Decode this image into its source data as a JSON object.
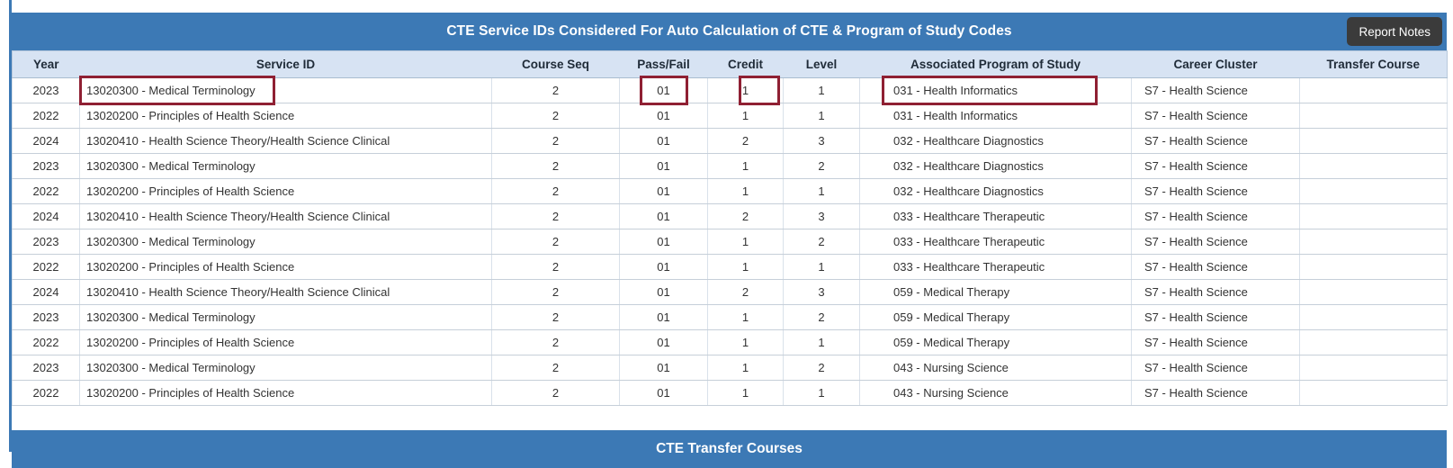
{
  "colors": {
    "bar_blue": "#3c79b5",
    "header_row_bg": "#d7e3f3",
    "highlight_red": "#8f2033",
    "button_dark": "#3b3b3b"
  },
  "header_bar": {
    "title": "CTE Service IDs Considered For Auto Calculation of CTE & Program of Study Codes",
    "report_notes_label": "Report Notes"
  },
  "table": {
    "columns": [
      {
        "key": "year",
        "label": "Year"
      },
      {
        "key": "service_id",
        "label": "Service ID"
      },
      {
        "key": "course_seq",
        "label": "Course Seq"
      },
      {
        "key": "pass_fail",
        "label": "Pass/Fail"
      },
      {
        "key": "credit",
        "label": "Credit"
      },
      {
        "key": "level",
        "label": "Level"
      },
      {
        "key": "program_of_study",
        "label": "Associated Program of Study"
      },
      {
        "key": "career_cluster",
        "label": "Career Cluster"
      },
      {
        "key": "transfer_course",
        "label": "Transfer Course"
      }
    ],
    "rows": [
      {
        "year": "2023",
        "service_id": "13020300 - Medical Terminology",
        "course_seq": "2",
        "pass_fail": "01",
        "credit": "1",
        "level": "1",
        "program_of_study": "031 - Health Informatics",
        "career_cluster": "S7 - Health Science",
        "transfer_course": "",
        "highlights": [
          "service_id",
          "pass_fail",
          "credit",
          "program_of_study"
        ]
      },
      {
        "year": "2022",
        "service_id": "13020200 - Principles of Health Science",
        "course_seq": "2",
        "pass_fail": "01",
        "credit": "1",
        "level": "1",
        "program_of_study": "031 - Health Informatics",
        "career_cluster": "S7 - Health Science",
        "transfer_course": ""
      },
      {
        "year": "2024",
        "service_id": "13020410 - Health Science Theory/Health Science Clinical",
        "course_seq": "2",
        "pass_fail": "01",
        "credit": "2",
        "level": "3",
        "program_of_study": "032 - Healthcare Diagnostics",
        "career_cluster": "S7 - Health Science",
        "transfer_course": ""
      },
      {
        "year": "2023",
        "service_id": "13020300 - Medical Terminology",
        "course_seq": "2",
        "pass_fail": "01",
        "credit": "1",
        "level": "2",
        "program_of_study": "032 - Healthcare Diagnostics",
        "career_cluster": "S7 - Health Science",
        "transfer_course": ""
      },
      {
        "year": "2022",
        "service_id": "13020200 - Principles of Health Science",
        "course_seq": "2",
        "pass_fail": "01",
        "credit": "1",
        "level": "1",
        "program_of_study": "032 - Healthcare Diagnostics",
        "career_cluster": "S7 - Health Science",
        "transfer_course": ""
      },
      {
        "year": "2024",
        "service_id": "13020410 - Health Science Theory/Health Science Clinical",
        "course_seq": "2",
        "pass_fail": "01",
        "credit": "2",
        "level": "3",
        "program_of_study": "033 - Healthcare Therapeutic",
        "career_cluster": "S7 - Health Science",
        "transfer_course": ""
      },
      {
        "year": "2023",
        "service_id": "13020300 - Medical Terminology",
        "course_seq": "2",
        "pass_fail": "01",
        "credit": "1",
        "level": "2",
        "program_of_study": "033 - Healthcare Therapeutic",
        "career_cluster": "S7 - Health Science",
        "transfer_course": ""
      },
      {
        "year": "2022",
        "service_id": "13020200 - Principles of Health Science",
        "course_seq": "2",
        "pass_fail": "01",
        "credit": "1",
        "level": "1",
        "program_of_study": "033 - Healthcare Therapeutic",
        "career_cluster": "S7 - Health Science",
        "transfer_course": ""
      },
      {
        "year": "2024",
        "service_id": "13020410 - Health Science Theory/Health Science Clinical",
        "course_seq": "2",
        "pass_fail": "01",
        "credit": "2",
        "level": "3",
        "program_of_study": "059 - Medical Therapy",
        "career_cluster": "S7 - Health Science",
        "transfer_course": ""
      },
      {
        "year": "2023",
        "service_id": "13020300 - Medical Terminology",
        "course_seq": "2",
        "pass_fail": "01",
        "credit": "1",
        "level": "2",
        "program_of_study": "059 - Medical Therapy",
        "career_cluster": "S7 - Health Science",
        "transfer_course": ""
      },
      {
        "year": "2022",
        "service_id": "13020200 - Principles of Health Science",
        "course_seq": "2",
        "pass_fail": "01",
        "credit": "1",
        "level": "1",
        "program_of_study": "059 - Medical Therapy",
        "career_cluster": "S7 - Health Science",
        "transfer_course": ""
      },
      {
        "year": "2023",
        "service_id": "13020300 - Medical Terminology",
        "course_seq": "2",
        "pass_fail": "01",
        "credit": "1",
        "level": "2",
        "program_of_study": "043 - Nursing Science",
        "career_cluster": "S7 - Health Science",
        "transfer_course": ""
      },
      {
        "year": "2022",
        "service_id": "13020200 - Principles of Health Science",
        "course_seq": "2",
        "pass_fail": "01",
        "credit": "1",
        "level": "1",
        "program_of_study": "043 - Nursing Science",
        "career_cluster": "S7 - Health Science",
        "transfer_course": ""
      }
    ]
  },
  "footer_bar": {
    "title": "CTE Transfer Courses"
  }
}
